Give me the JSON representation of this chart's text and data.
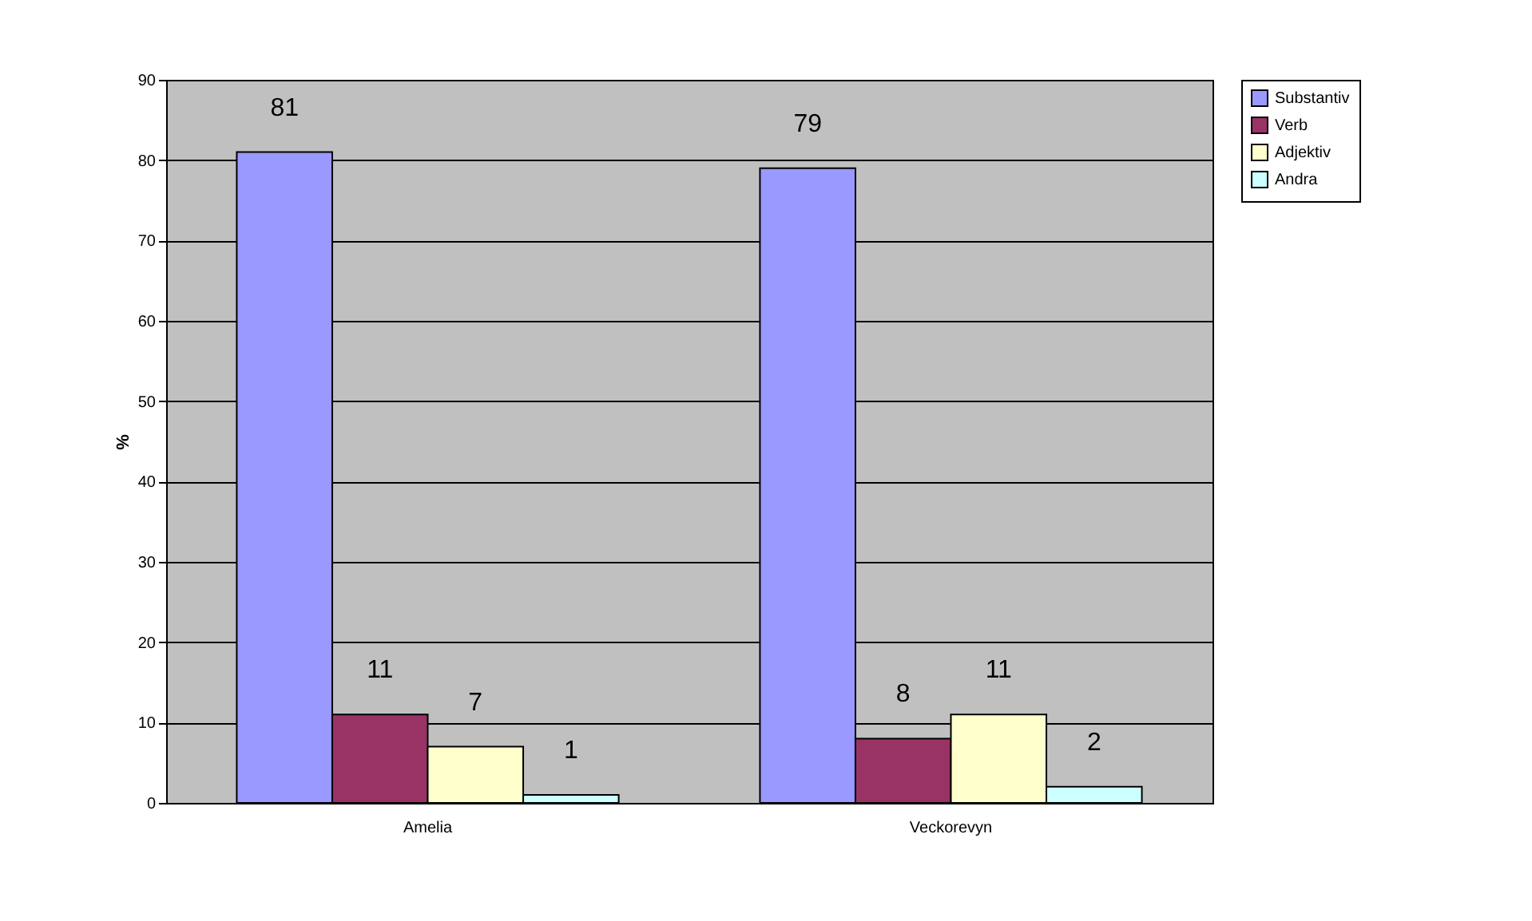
{
  "chart_data": {
    "type": "bar",
    "ylabel": "%",
    "categories": [
      "Amelia",
      "Veckorevyn"
    ],
    "series": [
      {
        "name": "Substantiv",
        "color": "#9999ff",
        "values": [
          81,
          79
        ]
      },
      {
        "name": "Verb",
        "color": "#993366",
        "values": [
          11,
          8
        ]
      },
      {
        "name": "Adjektiv",
        "color": "#ffffcc",
        "values": [
          7,
          11
        ]
      },
      {
        "name": "Andra",
        "color": "#ccffff",
        "values": [
          1,
          2
        ]
      }
    ],
    "ylim": [
      0,
      90
    ],
    "yticks": [
      0,
      10,
      20,
      30,
      40,
      50,
      60,
      70,
      80,
      90
    ],
    "grid": "y",
    "legend": "right",
    "data_labels": true
  }
}
